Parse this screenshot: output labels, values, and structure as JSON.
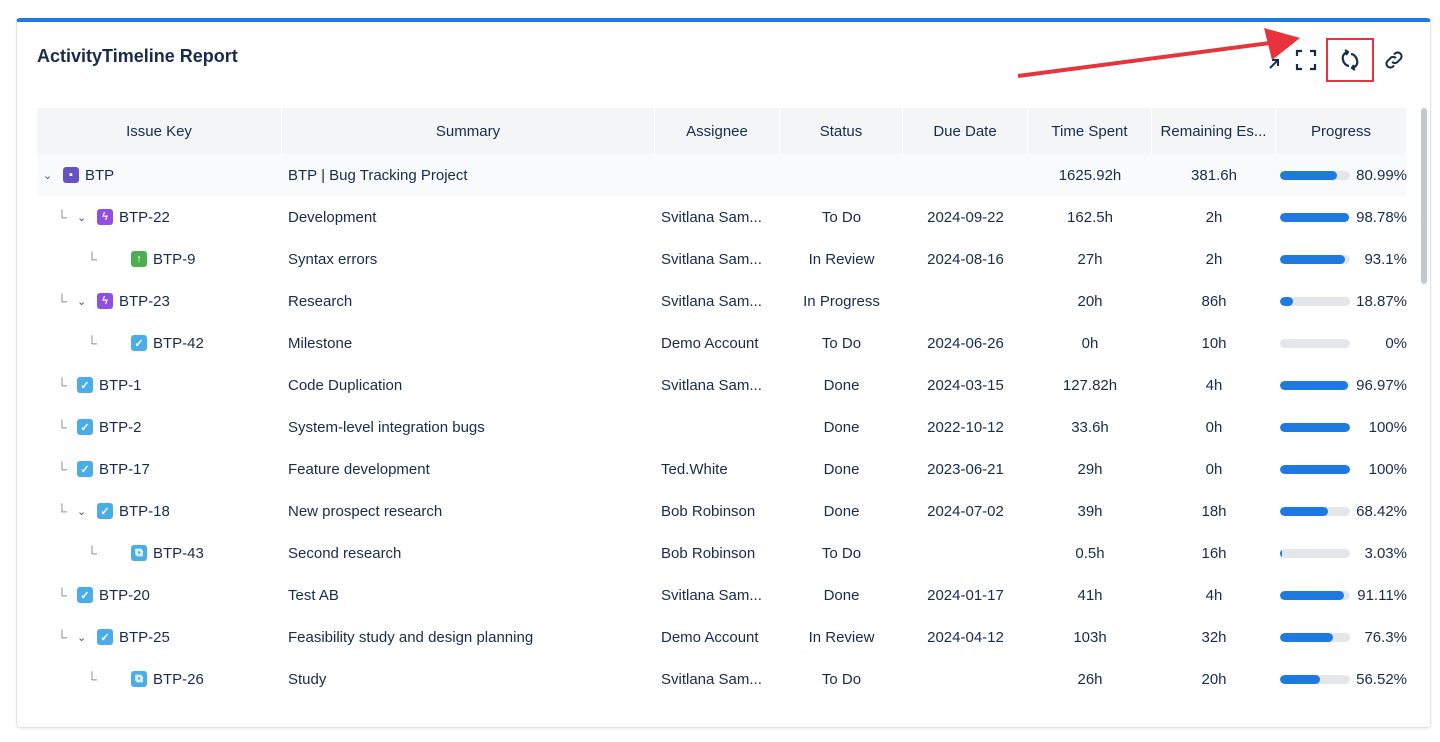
{
  "report": {
    "title": "ActivityTimeline Report"
  },
  "toolbar": {
    "icons": [
      "expand-arrow-icon",
      "fullscreen-icon",
      "refresh-icon",
      "link-icon"
    ]
  },
  "colors": {
    "accent": "#1f7ae0",
    "highlight": "#e8323c"
  },
  "table": {
    "columns": [
      "Issue Key",
      "Summary",
      "Assignee",
      "Status",
      "Due Date",
      "Time Spent",
      "Remaining Es...",
      "Progress"
    ],
    "rows": [
      {
        "level": 0,
        "expand": true,
        "type": "project",
        "key": "BTP",
        "summary": "BTP | Bug Tracking Project",
        "assignee": "",
        "status": "",
        "due": "",
        "spent": "1625.92h",
        "remaining": "381.6h",
        "progress": 80.99,
        "progress_label": "80.99%"
      },
      {
        "level": 1,
        "expand": true,
        "type": "epic",
        "key": "BTP-22",
        "summary": "Development",
        "assignee": "Svitlana Sam...",
        "status": "To Do",
        "due": "2024-09-22",
        "spent": "162.5h",
        "remaining": "2h",
        "progress": 98.78,
        "progress_label": "98.78%"
      },
      {
        "level": 2,
        "expand": false,
        "type": "improvement",
        "key": "BTP-9",
        "summary": "Syntax errors",
        "assignee": "Svitlana Sam...",
        "status": "In Review",
        "due": "2024-08-16",
        "spent": "27h",
        "remaining": "2h",
        "progress": 93.1,
        "progress_label": "93.1%"
      },
      {
        "level": 1,
        "expand": true,
        "type": "epic",
        "key": "BTP-23",
        "summary": "Research",
        "assignee": "Svitlana Sam...",
        "status": "In Progress",
        "due": "",
        "spent": "20h",
        "remaining": "86h",
        "progress": 18.87,
        "progress_label": "18.87%"
      },
      {
        "level": 2,
        "expand": false,
        "type": "task",
        "key": "BTP-42",
        "summary": "Milestone",
        "assignee": "Demo Account",
        "status": "To Do",
        "due": "2024-06-26",
        "spent": "0h",
        "remaining": "10h",
        "progress": 0,
        "progress_label": "0%"
      },
      {
        "level": 1,
        "expand": false,
        "type": "task",
        "key": "BTP-1",
        "summary": "Code Duplication",
        "assignee": "Svitlana Sam...",
        "status": "Done",
        "due": "2024-03-15",
        "spent": "127.82h",
        "remaining": "4h",
        "progress": 96.97,
        "progress_label": "96.97%"
      },
      {
        "level": 1,
        "expand": false,
        "type": "task",
        "key": "BTP-2",
        "summary": "System-level integration bugs",
        "assignee": "",
        "status": "Done",
        "due": "2022-10-12",
        "spent": "33.6h",
        "remaining": "0h",
        "progress": 100,
        "progress_label": "100%"
      },
      {
        "level": 1,
        "expand": false,
        "type": "task",
        "key": "BTP-17",
        "summary": "Feature development",
        "assignee": "Ted.White",
        "status": "Done",
        "due": "2023-06-21",
        "spent": "29h",
        "remaining": "0h",
        "progress": 100,
        "progress_label": "100%"
      },
      {
        "level": 1,
        "expand": true,
        "type": "task",
        "key": "BTP-18",
        "summary": "New prospect research",
        "assignee": "Bob Robinson",
        "status": "Done",
        "due": "2024-07-02",
        "spent": "39h",
        "remaining": "18h",
        "progress": 68.42,
        "progress_label": "68.42%"
      },
      {
        "level": 2,
        "expand": false,
        "type": "subtask",
        "key": "BTP-43",
        "summary": "Second research",
        "assignee": "Bob Robinson",
        "status": "To Do",
        "due": "",
        "spent": "0.5h",
        "remaining": "16h",
        "progress": 3.03,
        "progress_label": "3.03%"
      },
      {
        "level": 1,
        "expand": false,
        "type": "task",
        "key": "BTP-20",
        "summary": "Test AB",
        "assignee": "Svitlana Sam...",
        "status": "Done",
        "due": "2024-01-17",
        "spent": "41h",
        "remaining": "4h",
        "progress": 91.11,
        "progress_label": "91.11%"
      },
      {
        "level": 1,
        "expand": true,
        "type": "task",
        "key": "BTP-25",
        "summary": "Feasibility study and design planning",
        "assignee": "Demo Account",
        "status": "In Review",
        "due": "2024-04-12",
        "spent": "103h",
        "remaining": "32h",
        "progress": 76.3,
        "progress_label": "76.3%"
      },
      {
        "level": 2,
        "expand": false,
        "type": "subtask",
        "key": "BTP-26",
        "summary": "Study",
        "assignee": "Svitlana Sam...",
        "status": "To Do",
        "due": "",
        "spent": "26h",
        "remaining": "20h",
        "progress": 56.52,
        "progress_label": "56.52%"
      }
    ]
  }
}
